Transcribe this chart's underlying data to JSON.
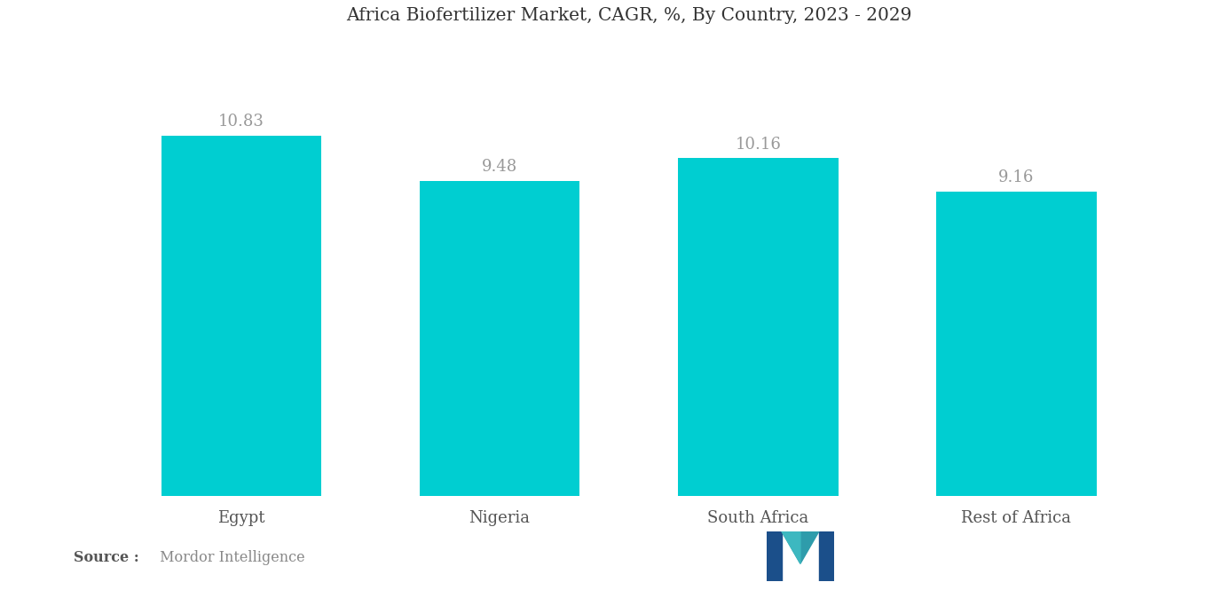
{
  "title": "Africa Biofertilizer Market, CAGR, %, By Country, 2023 - 2029",
  "categories": [
    "Egypt",
    "Nigeria",
    "South Africa",
    "Rest of Africa"
  ],
  "values": [
    10.83,
    9.48,
    10.16,
    9.16
  ],
  "bar_color": "#00CED1",
  "value_color": "#999999",
  "label_color": "#555555",
  "title_color": "#333333",
  "background_color": "#ffffff",
  "ylim": [
    0,
    13.5
  ],
  "bar_width": 0.62,
  "title_fontsize": 14.5,
  "label_fontsize": 13,
  "value_fontsize": 13,
  "source_bold": "Source :",
  "source_normal": " Mordor Intelligence"
}
